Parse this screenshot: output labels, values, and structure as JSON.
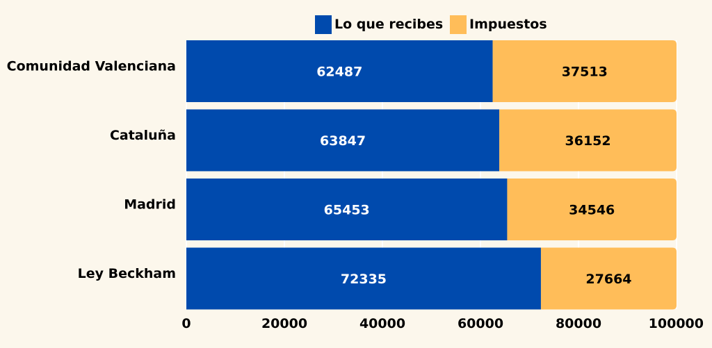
{
  "chart_data": {
    "type": "bar",
    "orientation": "horizontal",
    "stacked": true,
    "title": "",
    "xlabel": "",
    "ylabel": "",
    "xlim": [
      0,
      100000
    ],
    "x_ticks": [
      "0",
      "20000",
      "40000",
      "60000",
      "80000",
      "100000"
    ],
    "x_tick_values": [
      0,
      20000,
      40000,
      60000,
      80000,
      100000
    ],
    "grid": true,
    "legend_position": "top-center",
    "categories": [
      "Comunidad Valenciana",
      "Cataluña",
      "Madrid",
      "Ley Beckham"
    ],
    "series": [
      {
        "name": "Lo que recibes",
        "color": "#004aad",
        "label_color": "#ffffff",
        "values": [
          62487,
          63847,
          65453,
          72335
        ]
      },
      {
        "name": "Impuestos",
        "color": "#ffbd59",
        "label_color": "#000000",
        "values": [
          37513,
          36152,
          34546,
          27664
        ]
      }
    ]
  },
  "colors": {
    "background": "#fcf7ec",
    "grid": "#ffffff",
    "text": "#000000"
  }
}
